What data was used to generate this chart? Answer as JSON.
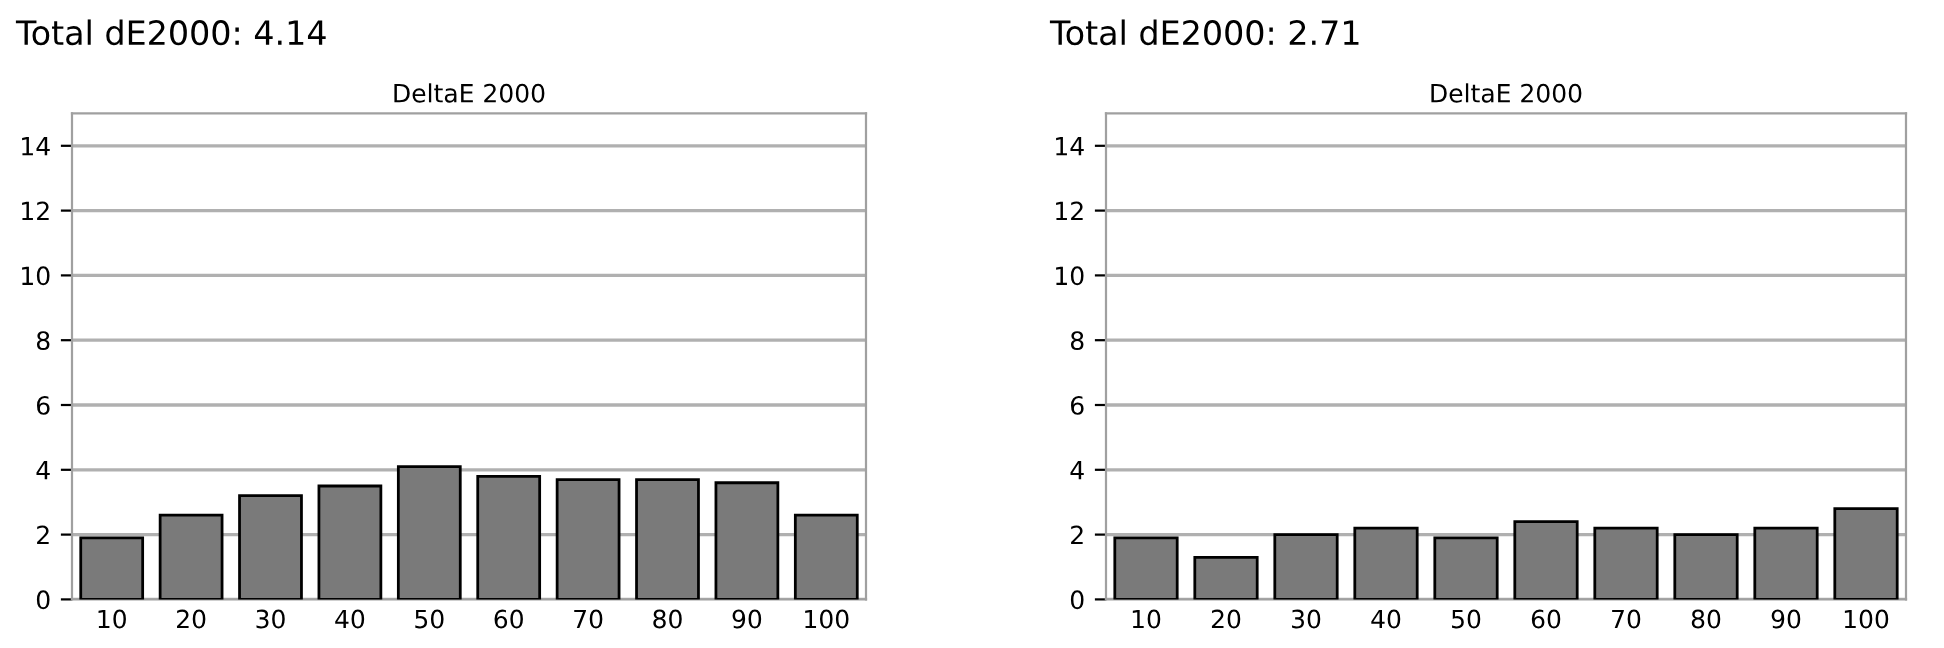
{
  "chart_data": [
    {
      "type": "bar",
      "title": "Total dE2000: 4.14",
      "subtitle": "DeltaE 2000",
      "categories": [
        "10",
        "20",
        "30",
        "40",
        "50",
        "60",
        "70",
        "80",
        "90",
        "100"
      ],
      "values": [
        1.9,
        2.6,
        3.2,
        3.5,
        4.1,
        3.8,
        3.7,
        3.7,
        3.6,
        2.6
      ],
      "color": "#7a7a7a",
      "ylim": [
        0,
        15
      ],
      "yticks": [
        0,
        2,
        4,
        6,
        8,
        10,
        12,
        14
      ],
      "grid": "y",
      "legend": false
    },
    {
      "type": "bar",
      "title": "Total dE2000: 2.71",
      "subtitle": "DeltaE 2000",
      "categories": [
        "10",
        "20",
        "30",
        "40",
        "50",
        "60",
        "70",
        "80",
        "90",
        "100"
      ],
      "values": [
        1.9,
        1.3,
        2.0,
        2.2,
        1.9,
        2.4,
        2.2,
        2.0,
        2.2,
        2.8
      ],
      "color": "#7a7a7a",
      "ylim": [
        0,
        15
      ],
      "yticks": [
        0,
        2,
        4,
        6,
        8,
        10,
        12,
        14
      ],
      "grid": "y",
      "legend": false
    }
  ]
}
